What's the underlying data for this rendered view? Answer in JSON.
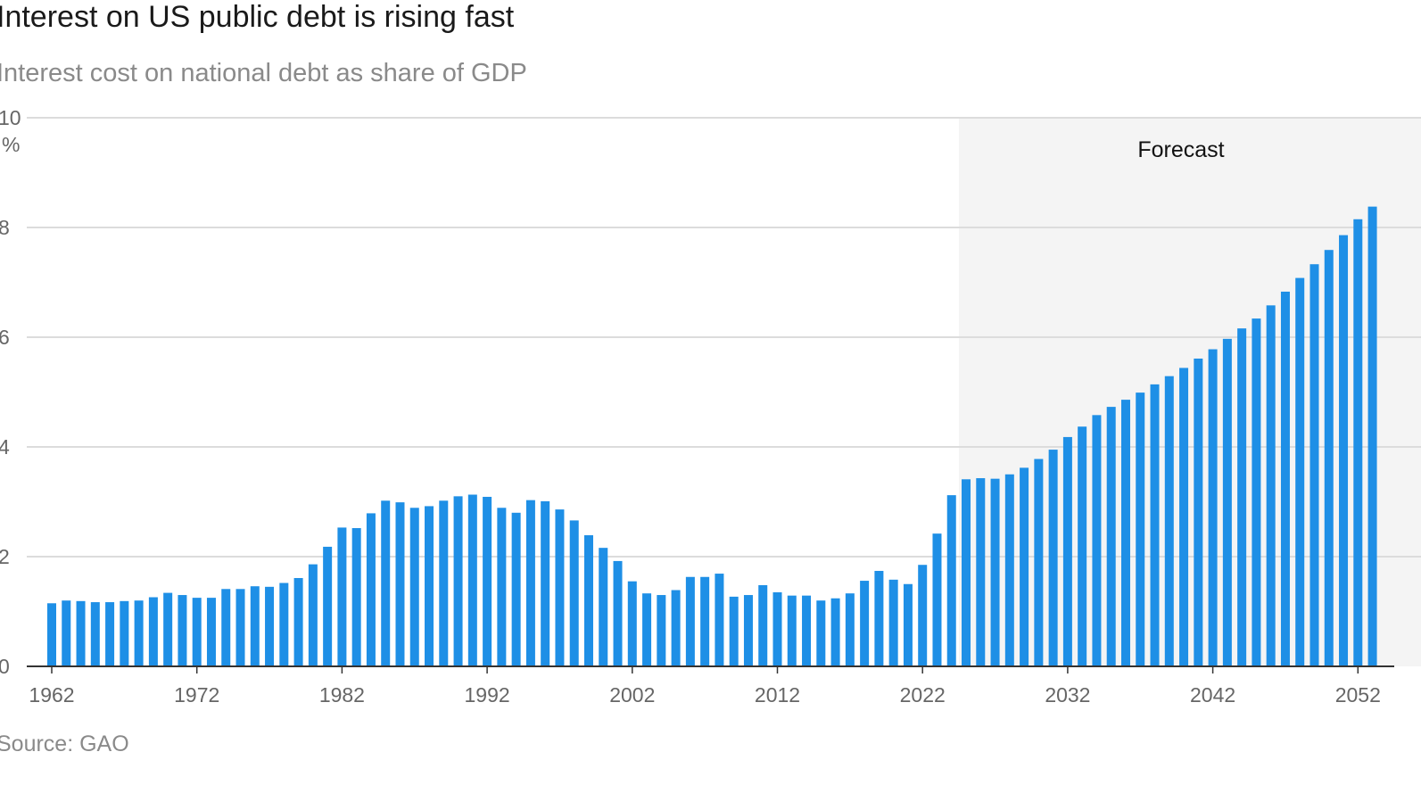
{
  "title": "Interest on US public debt is rising fast",
  "subtitle": "Interest cost on national debt as share of GDP",
  "source": "Source: GAO",
  "colors": {
    "bar": "#1e8fe6",
    "forecast_shade": "#f4f4f4",
    "grid": "#dcdcdc"
  },
  "chart_data": {
    "type": "bar",
    "title": "Interest on US public debt is rising fast",
    "subtitle": "Interest cost on national debt as share of GDP",
    "y_unit": "%",
    "ylim": [
      0,
      10
    ],
    "yticks": [
      0,
      2,
      4,
      6,
      8,
      10
    ],
    "xticks": [
      1962,
      1972,
      1982,
      1992,
      2002,
      2012,
      2022,
      2032,
      2042,
      2052
    ],
    "grid": true,
    "forecast": {
      "label": "Forecast",
      "start_year": 2025
    },
    "categories": [
      1962,
      1963,
      1964,
      1965,
      1966,
      1967,
      1968,
      1969,
      1970,
      1971,
      1972,
      1973,
      1974,
      1975,
      1976,
      1977,
      1978,
      1979,
      1980,
      1981,
      1982,
      1983,
      1984,
      1985,
      1986,
      1987,
      1988,
      1989,
      1990,
      1991,
      1992,
      1993,
      1994,
      1995,
      1996,
      1997,
      1998,
      1999,
      2000,
      2001,
      2002,
      2003,
      2004,
      2005,
      2006,
      2007,
      2008,
      2009,
      2010,
      2011,
      2012,
      2013,
      2014,
      2015,
      2016,
      2017,
      2018,
      2019,
      2020,
      2021,
      2022,
      2023,
      2024,
      2025,
      2026,
      2027,
      2028,
      2029,
      2030,
      2031,
      2032,
      2033,
      2034,
      2035,
      2036,
      2037,
      2038,
      2039,
      2040,
      2041,
      2042,
      2043,
      2044,
      2045,
      2046,
      2047,
      2048,
      2049,
      2050,
      2051,
      2052,
      2053
    ],
    "values": [
      1.15,
      1.2,
      1.19,
      1.17,
      1.17,
      1.19,
      1.2,
      1.26,
      1.34,
      1.3,
      1.25,
      1.25,
      1.41,
      1.41,
      1.46,
      1.45,
      1.52,
      1.61,
      1.86,
      2.18,
      2.53,
      2.52,
      2.79,
      3.02,
      2.99,
      2.89,
      2.92,
      3.02,
      3.1,
      3.13,
      3.09,
      2.89,
      2.8,
      3.03,
      3.01,
      2.86,
      2.66,
      2.39,
      2.16,
      1.92,
      1.55,
      1.33,
      1.3,
      1.39,
      1.63,
      1.63,
      1.69,
      1.27,
      1.3,
      1.48,
      1.35,
      1.29,
      1.29,
      1.2,
      1.24,
      1.33,
      1.56,
      1.74,
      1.58,
      1.5,
      1.85,
      2.42,
      3.12,
      3.41,
      3.43,
      3.42,
      3.5,
      3.62,
      3.78,
      3.95,
      4.18,
      4.37,
      4.58,
      4.73,
      4.86,
      4.99,
      5.14,
      5.29,
      5.44,
      5.61,
      5.78,
      5.97,
      6.16,
      6.34,
      6.58,
      6.83,
      7.08,
      7.33,
      7.59,
      7.86,
      8.15,
      8.38
    ]
  }
}
